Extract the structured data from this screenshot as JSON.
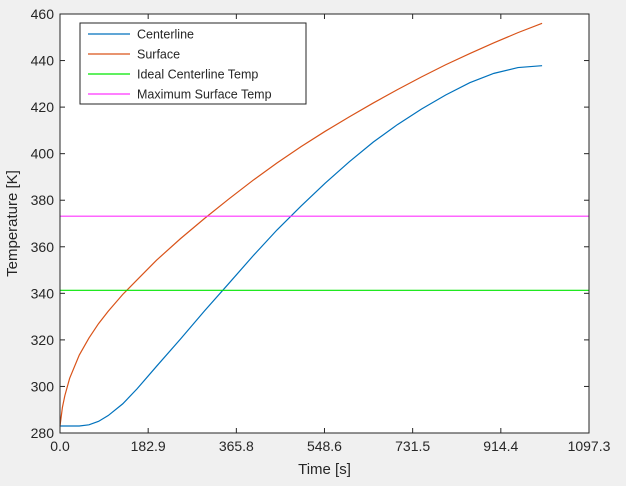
{
  "chart_data": {
    "type": "line",
    "title": "",
    "xlabel": "Time [s]",
    "ylabel": "Temperature [K]",
    "xlim": [
      0,
      1097.3
    ],
    "ylim": [
      280,
      460
    ],
    "x_ticks": [
      0,
      182.9,
      365.8,
      548.6,
      731.5,
      914.4,
      1097.3
    ],
    "x_tick_labels": [
      "0.0",
      "182.9",
      "365.8",
      "548.6",
      "731.5",
      "914.4",
      "1097.3"
    ],
    "y_ticks": [
      280,
      300,
      320,
      340,
      360,
      380,
      400,
      420,
      440,
      460
    ],
    "y_tick_labels": [
      "280",
      "300",
      "320",
      "340",
      "360",
      "380",
      "400",
      "420",
      "440",
      "460"
    ],
    "grid": false,
    "legend_position": "top-left",
    "series": [
      {
        "name": "Centerline",
        "color": "#0072bd",
        "x": [
          0,
          20,
          40,
          60,
          80,
          100,
          130,
          160,
          200,
          250,
          300,
          350,
          400,
          450,
          500,
          550,
          600,
          650,
          700,
          750,
          800,
          850,
          900,
          950,
          1000
        ],
        "y": [
          283,
          283,
          283,
          283.5,
          285,
          287.5,
          292.5,
          299,
          308.6,
          320.4,
          332.5,
          344.2,
          356,
          367.2,
          377.5,
          387.3,
          396.5,
          405,
          412.5,
          419.2,
          425.2,
          430.5,
          434.5,
          437,
          437.8
        ]
      },
      {
        "name": "Surface",
        "color": "#d95319",
        "x": [
          0,
          5,
          10,
          20,
          40,
          60,
          80,
          100,
          130,
          160,
          200,
          250,
          300,
          350,
          400,
          450,
          500,
          550,
          600,
          650,
          700,
          750,
          800,
          850,
          900,
          950,
          1000
        ],
        "y": [
          283,
          291,
          296,
          303.5,
          313.5,
          320.8,
          327,
          332.3,
          339.5,
          345.8,
          354.2,
          363.5,
          372.2,
          380.5,
          388.5,
          396,
          403,
          409.6,
          415.8,
          421.8,
          427.5,
          433,
          438.2,
          443,
          447.6,
          452,
          456
        ]
      },
      {
        "name": "Ideal Centerline Temp",
        "color": "#00e600",
        "x": [
          0,
          1097.3
        ],
        "y": [
          341.3,
          341.3
        ]
      },
      {
        "name": "Maximum Surface Temp",
        "color": "#ff33ff",
        "x": [
          0,
          1097.3
        ],
        "y": [
          373.15,
          373.15
        ]
      }
    ]
  }
}
